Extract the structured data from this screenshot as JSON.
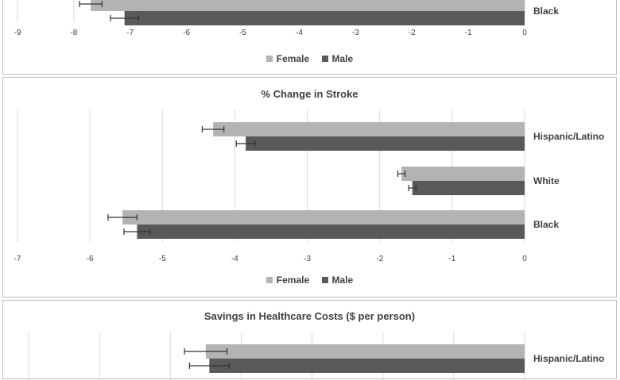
{
  "colors": {
    "female": "#b3b3b3",
    "male": "#595959",
    "grid": "#d9d9d9",
    "text": "#404040"
  },
  "chart_data": [
    {
      "type": "bar",
      "orientation": "horizontal",
      "title": "",
      "categories": [
        "Black"
      ],
      "series": [
        {
          "name": "Female",
          "values": [
            -7.7
          ],
          "error": [
            0.2
          ]
        },
        {
          "name": "Male",
          "values": [
            -7.1
          ],
          "error": [
            0.25
          ]
        }
      ],
      "xlim": [
        -9,
        0
      ],
      "ticks": [
        "-9",
        "-8",
        "-7",
        "-6",
        "-5",
        "-4",
        "-3",
        "-2",
        "-1",
        "0"
      ],
      "grid": true,
      "legend": "bottom"
    },
    {
      "type": "bar",
      "orientation": "horizontal",
      "title": "% Change in Stroke",
      "categories": [
        "Hispanic/Latino",
        "White",
        "Black"
      ],
      "series": [
        {
          "name": "Female",
          "values": [
            -4.3,
            -1.7,
            -5.55
          ],
          "error": [
            0.15,
            0.05,
            0.2
          ]
        },
        {
          "name": "Male",
          "values": [
            -3.85,
            -1.55,
            -5.35
          ],
          "error": [
            0.13,
            0.05,
            0.18
          ]
        }
      ],
      "xlim": [
        -7,
        0
      ],
      "ticks": [
        "-7",
        "-6",
        "-5",
        "-4",
        "-3",
        "-2",
        "-1",
        "0"
      ],
      "grid": true,
      "legend": "bottom"
    },
    {
      "type": "bar",
      "orientation": "horizontal",
      "title": "Savings in Healthcare Costs ($ per person)",
      "categories": [
        "Hispanic/Latino"
      ],
      "series": [
        {
          "name": "Female",
          "values": [
            -450
          ],
          "error": [
            30
          ]
        },
        {
          "name": "Male",
          "values": [
            -445
          ],
          "error": [
            28
          ]
        }
      ],
      "xlim": [
        -700,
        0
      ],
      "ticks": [],
      "grid": true,
      "legend": "bottom"
    }
  ]
}
